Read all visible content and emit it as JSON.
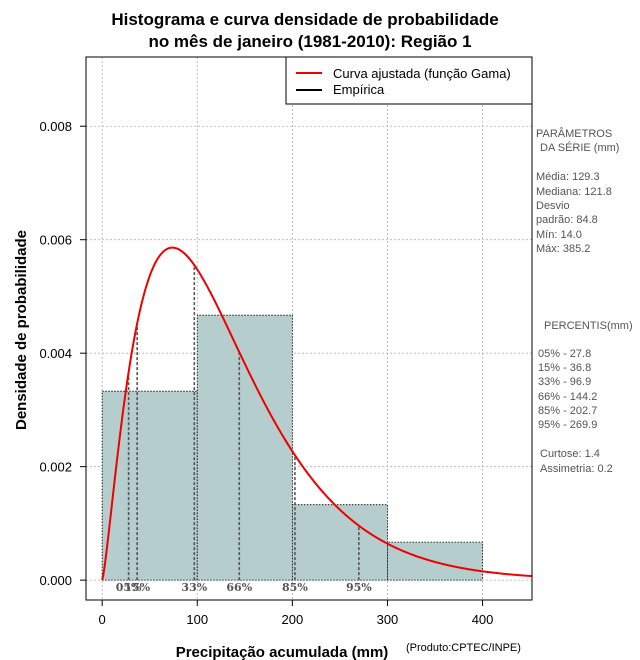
{
  "chart_data": {
    "type": "bar",
    "title_line1": "Histograma e curva densidade de probabilidade",
    "title_line2": "no mês de janeiro (1981-2010): Região 1",
    "xlabel": "Precipitação acumulada (mm)",
    "ylabel": "Densidade de probabilidade",
    "xlim": [
      -17,
      452
    ],
    "ylim": [
      -0.00035,
      0.00922
    ],
    "x_ticks": [
      0,
      100,
      200,
      300,
      400
    ],
    "x_tick_labels": [
      "0",
      "100",
      "200",
      "300",
      "400"
    ],
    "y_ticks": [
      0,
      0.002,
      0.004,
      0.006,
      0.008
    ],
    "y_tick_labels": [
      "0.000",
      "0.002",
      "0.004",
      "0.006",
      "0.008"
    ],
    "grid": true,
    "bins": [
      {
        "from": 0,
        "to": 100,
        "density": 0.00333
      },
      {
        "from": 100,
        "to": 200,
        "density": 0.00467
      },
      {
        "from": 200,
        "to": 300,
        "density": 0.00133
      },
      {
        "from": 300,
        "to": 400,
        "density": 0.00067
      }
    ],
    "bar_color": "#b5cdcc",
    "gamma_fit": {
      "shape": 2.33,
      "scale": 55.5,
      "color": "#ee0000"
    },
    "legend": {
      "position": "top-right",
      "entries": [
        {
          "label": "Curva ajustada (função Gama)",
          "color": "#ee0000"
        },
        {
          "label": "Empírica",
          "color": "#000000"
        }
      ]
    },
    "percentile_lines": [
      {
        "value": 27.8,
        "label": "05%"
      },
      {
        "value": 36.8,
        "label": "15%"
      },
      {
        "value": 96.9,
        "label": "33%"
      },
      {
        "value": 144.2,
        "label": "66%"
      },
      {
        "value": 202.7,
        "label": "85%"
      },
      {
        "value": 269.9,
        "label": "95%"
      }
    ]
  },
  "side_panel": {
    "params_title1": "PARÂMETROS",
    "params_title2": "DA SÉRIE (mm)",
    "media": "Média:  129.3",
    "mediana": "Mediana:  121.8",
    "desvio1": "Desvio",
    "desvio2": "padrão:  84.8",
    "min": "Mín:  14.0",
    "max": "Máx:  385.2",
    "pct_title": "PERCENTIS(mm)",
    "p05": "05% -   27.8",
    "p15": "15% -   36.8",
    "p33": "33% -   96.9",
    "p66": "66% -  144.2",
    "p85": "85% -  202.7",
    "p95": "95% -  269.9",
    "curtose": "Curtose:  1.4",
    "assimetria": "Assimetria:  0.2"
  },
  "credit": "(Produto:CPTEC/INPE)",
  "colors": {
    "grid": "#b0b0b0",
    "side_text": "#555555"
  }
}
